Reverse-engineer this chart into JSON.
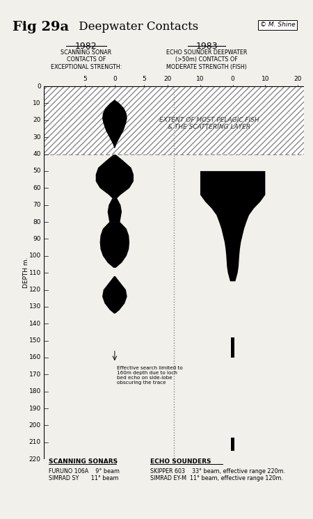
{
  "title_bold": "Fig 29a",
  "title_rest": " Deepwater Contacts",
  "signature": "© M. Shine",
  "year_left": "1982",
  "year_right": "1983",
  "label_left": "SCANNING SONAR\nCONTACTS OF\nEXCEPTIONAL STRENGTH:",
  "label_right": "ECHO SOUNDER DEEPWATER\n(>50m) CONTACTS OF\nMODERATE STRENGTH (FISH)",
  "depth_label": "DEPTH m.",
  "hatch_label": "EXTENT OF MOST PELAGIC FISH\n& THE SCATTERING LAYER",
  "dashed_line_depth": 40,
  "depth_max": 220,
  "annotation_text": "Effective search limited to\n160m depth due to loch\nbed echo on side-lobe\nobscuring the trace",
  "bottom_left_title": "SCANNING SONARS",
  "bottom_right_title": "ECHO SOUNDERS",
  "bottom_left_text": "FURUNO 106A    9° beam\nSIMRAD SY       11° beam",
  "bottom_right_text": "SKIPPER 603    33° beam, effective range 220m.\nSIMRAD EY-M  11° beam, effective range 120m.",
  "bg_color": "#f2f0eb"
}
